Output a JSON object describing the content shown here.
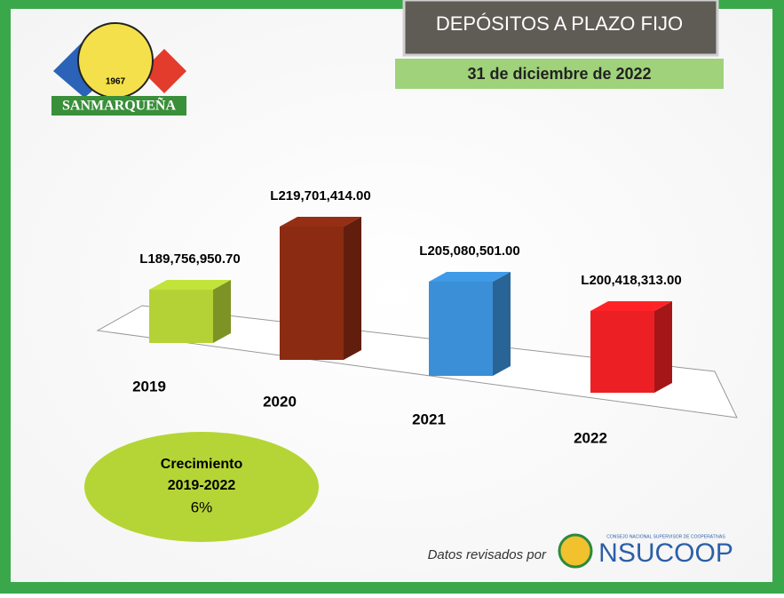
{
  "header": {
    "title": "DEPÓSITOS A PLAZO FIJO",
    "date": "31 de diciembre de 2022"
  },
  "logo": {
    "name": "SANMARQUEÑA",
    "year": "1967"
  },
  "growth": {
    "label": "Crecimiento",
    "period": "2019-2022",
    "value": "6%"
  },
  "footer": {
    "text": "Datos revisados por",
    "brand": "NSUCOOP",
    "brand_subtitle": "CONSEJO NACIONAL SUPERVISOR DE COOPERATIVAS"
  },
  "chart_data": {
    "type": "bar3d",
    "categories": [
      "2019",
      "2020",
      "2021",
      "2022"
    ],
    "values": [
      189756950.7,
      219701414.0,
      205080501.0,
      200418313.0
    ],
    "value_labels": [
      "L189,756,950.70",
      "L219,701,414.00",
      "L205,080,501.00",
      "L200,418,313.00"
    ],
    "colors": [
      "#b4d236",
      "#8a2b12",
      "#3a8fd6",
      "#ec2024"
    ]
  }
}
